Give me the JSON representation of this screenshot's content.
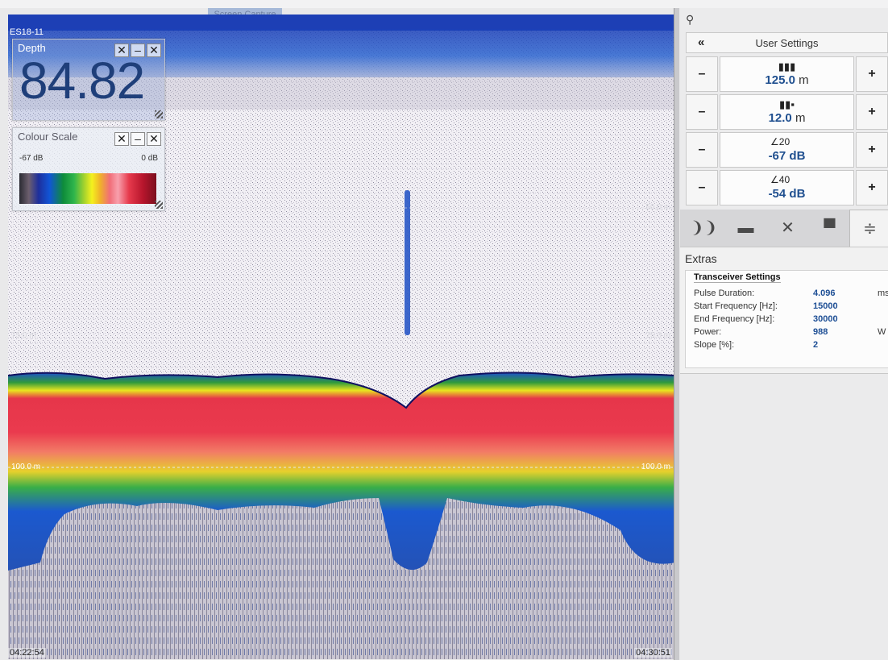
{
  "window": {
    "capture_tab": "Screen Capture",
    "channel_label": "ES18-11"
  },
  "depth_panel": {
    "title": "Depth",
    "value": "84.82"
  },
  "colour_scale_panel": {
    "title": "Colour Scale",
    "min_label": "-67 dB",
    "max_label": "0 dB"
  },
  "echogram": {
    "range_labels": {
      "r50": "50.0 m",
      "r75": "75.0 m",
      "r100": "100.0 m"
    },
    "time_start": "04:22:54",
    "time_end": "04:30:51"
  },
  "side_panel": {
    "header": "User Settings",
    "back_icon": "double-chevron-left",
    "range_value": "125.0",
    "range_unit": "m",
    "start_value": "12.0",
    "start_unit": "m",
    "tvg1_value": "-67",
    "tvg1_unit": "dB",
    "tvg1_superscript": "20",
    "tvg2_value": "-54",
    "tvg2_unit": "dB",
    "tvg2_superscript": "40",
    "minus_label": "–",
    "plus_label": "+",
    "tabs": [
      "echo-icon",
      "monitor-icon",
      "tools-icon",
      "window-icon",
      "extras-icon"
    ]
  },
  "extras": {
    "title": "Extras",
    "section_title": "Transceiver Settings",
    "rows": [
      {
        "key": "Pulse Duration:",
        "value": "4.096",
        "unit": "ms"
      },
      {
        "key": "Start Frequency [Hz]:",
        "value": "15000",
        "unit": ""
      },
      {
        "key": "End Frequency [Hz]:",
        "value": "30000",
        "unit": ""
      },
      {
        "key": "Power:",
        "value": "988",
        "unit": "W"
      },
      {
        "key": "Slope [%]:",
        "value": "2",
        "unit": ""
      }
    ]
  }
}
